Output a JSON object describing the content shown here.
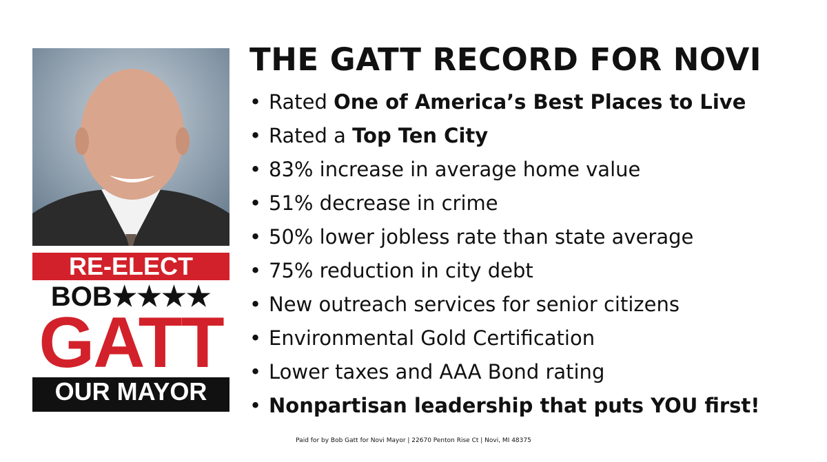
{
  "logo": {
    "line1": "RE-ELECT",
    "line2": "BOB",
    "stars": "★★★★",
    "line3": "GATT",
    "line4": "OUR MAYOR"
  },
  "record": {
    "title": "THE GATT RECORD FOR NOVI",
    "items": [
      {
        "parts": [
          {
            "text": "Rated ",
            "bold": false
          },
          {
            "text": "One of America’s Best Places to Live",
            "bold": true
          }
        ]
      },
      {
        "parts": [
          {
            "text": "Rated a ",
            "bold": false
          },
          {
            "text": "Top Ten City",
            "bold": true
          }
        ]
      },
      {
        "parts": [
          {
            "text": "83% increase in average home value",
            "bold": false
          }
        ]
      },
      {
        "parts": [
          {
            "text": "51% decrease in crime",
            "bold": false
          }
        ]
      },
      {
        "parts": [
          {
            "text": "50% lower jobless rate than state average",
            "bold": false
          }
        ]
      },
      {
        "parts": [
          {
            "text": "75% reduction in city debt",
            "bold": false
          }
        ]
      },
      {
        "parts": [
          {
            "text": "New outreach services for senior citizens",
            "bold": false
          }
        ]
      },
      {
        "parts": [
          {
            "text": "Environmental Gold Certification",
            "bold": false
          }
        ]
      },
      {
        "parts": [
          {
            "text": "Lower taxes and AAA Bond rating",
            "bold": false
          }
        ]
      },
      {
        "parts": [
          {
            "text": "Nonpartisan leadership that puts YOU first!",
            "bold": true
          }
        ]
      }
    ]
  },
  "footer": "Paid for by Bob Gatt for Novi Mayor | 22670 Penton Rise Ct | Novi, MI 48375"
}
